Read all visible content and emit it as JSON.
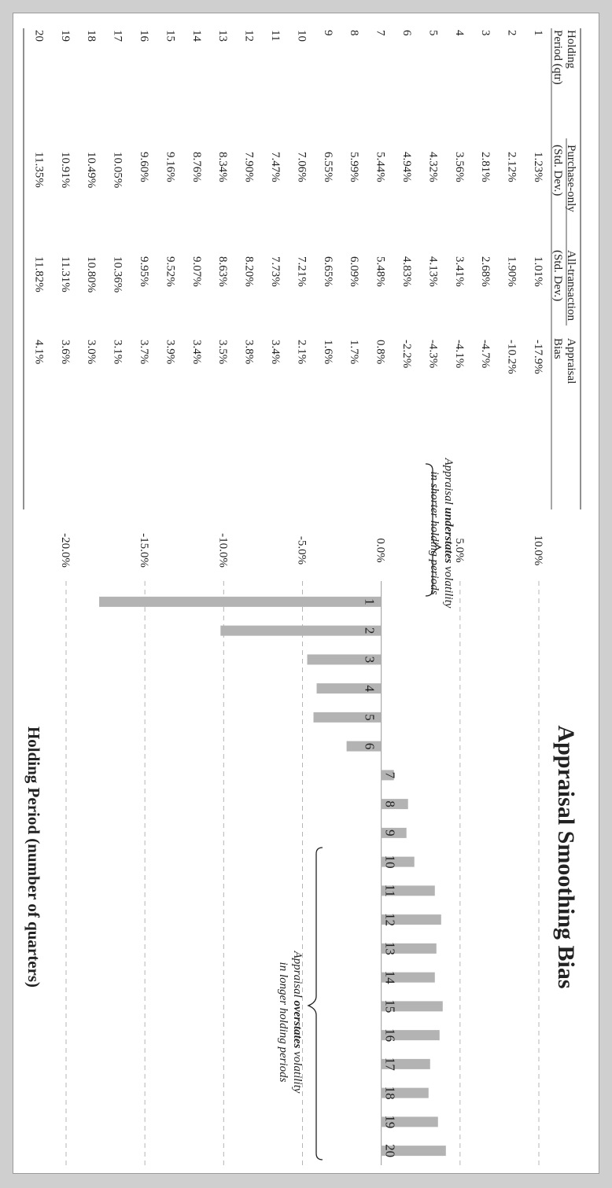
{
  "page": {
    "frame_color": "#cfcfcf",
    "bar_color": "#b3b3b3"
  },
  "table": {
    "header_row1": [
      "Holding",
      "Purchase-only",
      "All-transaction",
      "Appraisal"
    ],
    "header_row2": [
      "Period (qtr)",
      "(Std. Dev.)",
      "(Std. Dev.)",
      "Bias"
    ],
    "rows": [
      [
        "1",
        "1.23%",
        "1.01%",
        "-17.9%"
      ],
      [
        "2",
        "2.12%",
        "1.90%",
        "-10.2%"
      ],
      [
        "3",
        "2.81%",
        "2.68%",
        "-4.7%"
      ],
      [
        "4",
        "3.56%",
        "3.41%",
        "-4.1%"
      ],
      [
        "5",
        "4.32%",
        "4.13%",
        "-4.3%"
      ],
      [
        "6",
        "4.94%",
        "4.83%",
        "-2.2%"
      ],
      [
        "7",
        "5.44%",
        "5.48%",
        "0.8%"
      ],
      [
        "8",
        "5.99%",
        "6.09%",
        "1.7%"
      ],
      [
        "9",
        "6.55%",
        "6.65%",
        "1.6%"
      ],
      [
        "10",
        "7.06%",
        "7.21%",
        "2.1%"
      ],
      [
        "11",
        "7.47%",
        "7.73%",
        "3.4%"
      ],
      [
        "12",
        "7.90%",
        "8.20%",
        "3.8%"
      ],
      [
        "13",
        "8.34%",
        "8.63%",
        "3.5%"
      ],
      [
        "14",
        "8.76%",
        "9.07%",
        "3.4%"
      ],
      [
        "15",
        "9.16%",
        "9.52%",
        "3.9%"
      ],
      [
        "16",
        "9.60%",
        "9.95%",
        "3.7%"
      ],
      [
        "17",
        "10.05%",
        "10.36%",
        "3.1%"
      ],
      [
        "18",
        "10.49%",
        "10.80%",
        "3.0%"
      ],
      [
        "19",
        "10.91%",
        "11.31%",
        "3.6%"
      ],
      [
        "20",
        "11.35%",
        "11.82%",
        "4.1%"
      ]
    ]
  },
  "chart_data": {
    "type": "bar",
    "title": "Appraisal Smoothing Bias",
    "xlabel": "Holding Period (number of quarters)",
    "ylabel": "",
    "categories": [
      "1",
      "2",
      "3",
      "4",
      "5",
      "6",
      "7",
      "8",
      "9",
      "10",
      "11",
      "12",
      "13",
      "14",
      "15",
      "16",
      "17",
      "18",
      "19",
      "20"
    ],
    "values": [
      -17.9,
      -10.2,
      -4.7,
      -4.1,
      -4.3,
      -2.2,
      0.8,
      1.7,
      1.6,
      2.1,
      3.4,
      3.8,
      3.5,
      3.4,
      3.9,
      3.7,
      3.1,
      3.0,
      3.6,
      4.1
    ],
    "ylim": [
      -20,
      10
    ],
    "yticks": [
      "10.0%",
      "5.0%",
      "0.0%",
      "-5.0%",
      "-10.0%",
      "-15.0%",
      "-20.0%"
    ],
    "grid": "dashed",
    "orientation": "rotated 90 degrees clockwise",
    "annotations": {
      "under": {
        "pre": "Appraisal ",
        "bold": "understates",
        "post": " volatility",
        "line2": "in shorter holding periods"
      },
      "over": {
        "pre": "Appraisal ",
        "bold": "overstates",
        "post": " volatility",
        "line2": "in longer holding periods"
      }
    }
  }
}
